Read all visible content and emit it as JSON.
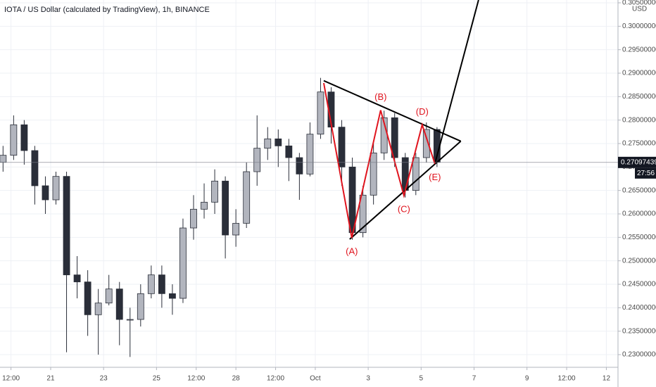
{
  "chart_data": {
    "type": "candlestick",
    "title": "IOTA / US Dollar (calculated by TradingView), 1h, BINANCE",
    "currency": "USD",
    "x": [
      19.2,
      19.6,
      20,
      20.4,
      20.8,
      21.2,
      21.6,
      22,
      22.4,
      22.8,
      23.2,
      23.6,
      24,
      24.4,
      24.8,
      25.2,
      25.6,
      26,
      26.4,
      26.8,
      27.2,
      27.6,
      28,
      28.4,
      28.8,
      29.2,
      29.6,
      30,
      30.4,
      30.8,
      31.2,
      31.6,
      32,
      32.4,
      32.8,
      33.2,
      33.6,
      34,
      34.4,
      34.8,
      35.2,
      35.6
    ],
    "open": [
      0.271,
      0.2725,
      0.279,
      0.2735,
      0.266,
      0.263,
      0.268,
      0.247,
      0.2455,
      0.2385,
      0.241,
      0.244,
      0.2375,
      0.2375,
      0.243,
      0.247,
      0.243,
      0.242,
      0.257,
      0.261,
      0.2625,
      0.267,
      0.2555,
      0.258,
      0.269,
      0.274,
      0.276,
      0.2745,
      0.272,
      0.2685,
      0.277,
      0.286,
      0.2785,
      0.27,
      0.256,
      0.264,
      0.273,
      0.2805,
      0.272,
      0.265,
      0.272,
      0.278
    ],
    "high": [
      0.2745,
      0.281,
      0.28,
      0.2745,
      0.268,
      0.269,
      0.269,
      0.251,
      0.248,
      0.244,
      0.247,
      0.2455,
      0.24,
      0.245,
      0.249,
      0.249,
      0.245,
      0.259,
      0.264,
      0.2665,
      0.2695,
      0.268,
      0.261,
      0.271,
      0.281,
      0.2785,
      0.278,
      0.276,
      0.273,
      0.2795,
      0.289,
      0.287,
      0.28,
      0.272,
      0.266,
      0.275,
      0.282,
      0.2815,
      0.273,
      0.273,
      0.2795,
      0.2785
    ],
    "low": [
      0.269,
      0.2715,
      0.2705,
      0.262,
      0.26,
      0.262,
      0.2305,
      0.242,
      0.234,
      0.23,
      0.2405,
      0.232,
      0.2295,
      0.236,
      0.242,
      0.24,
      0.2385,
      0.241,
      0.2545,
      0.259,
      0.26,
      0.2505,
      0.253,
      0.257,
      0.266,
      0.2715,
      0.27,
      0.267,
      0.263,
      0.268,
      0.276,
      0.275,
      0.266,
      0.2545,
      0.255,
      0.262,
      0.2715,
      0.27,
      0.2635,
      0.264,
      0.271,
      0.27
    ],
    "close": [
      0.2725,
      0.279,
      0.2735,
      0.266,
      0.263,
      0.268,
      0.247,
      0.2455,
      0.2385,
      0.241,
      0.244,
      0.2375,
      0.2375,
      0.243,
      0.247,
      0.243,
      0.242,
      0.257,
      0.261,
      0.2625,
      0.267,
      0.2555,
      0.258,
      0.269,
      0.274,
      0.276,
      0.2745,
      0.272,
      0.2685,
      0.277,
      0.286,
      0.2785,
      0.27,
      0.256,
      0.264,
      0.273,
      0.2805,
      0.272,
      0.265,
      0.272,
      0.278,
      0.271
    ],
    "up_color": "#b2b5be",
    "down_color": "#2a2e39",
    "xlim": [
      19.085,
      42.44
    ],
    "ylim": [
      0.2273,
      0.3056
    ],
    "xticks": [
      {
        "value": 19.5,
        "label": "12:00"
      },
      21,
      23,
      25,
      {
        "value": 26.5,
        "label": "12:00"
      },
      28,
      {
        "value": 29.5,
        "label": "12:00"
      },
      {
        "value": 31,
        "label": "Oct"
      },
      {
        "value": 33,
        "label": "3"
      },
      {
        "value": 35,
        "label": "5"
      },
      {
        "value": 37,
        "label": "7"
      },
      {
        "value": 39,
        "label": "9"
      },
      {
        "value": 40.5,
        "label": "12:00"
      },
      {
        "value": 42,
        "label": "12"
      }
    ],
    "yticks": [
      {
        "value": 0.23,
        "label": "0.23000000"
      },
      {
        "value": 0.235,
        "label": "0.23500000"
      },
      {
        "value": 0.24,
        "label": "0.24000000"
      },
      {
        "value": 0.245,
        "label": "0.24500000"
      },
      {
        "value": 0.25,
        "label": "0.25000000"
      },
      {
        "value": 0.255,
        "label": "0.25500000"
      },
      {
        "value": 0.26,
        "label": "0.26000000"
      },
      {
        "value": 0.265,
        "label": "0.26500000"
      },
      {
        "value": 0.27,
        "label": "0.27000000"
      },
      {
        "value": 0.275,
        "label": "0.27500000"
      },
      {
        "value": 0.28,
        "label": "0.28000000"
      },
      {
        "value": 0.285,
        "label": "0.28500000"
      },
      {
        "value": 0.29,
        "label": "0.29000000"
      },
      {
        "value": 0.295,
        "label": "0.29500000"
      },
      {
        "value": 0.3,
        "label": "0.30000000"
      },
      {
        "value": 0.305,
        "label": "0.30500000"
      }
    ],
    "grid": true,
    "last_price": 0.27097439,
    "countdown": "27:56",
    "wave": {
      "color": "#e0141e",
      "x": [
        31.32,
        32.38,
        33.47,
        34.35,
        35.04,
        35.52
      ],
      "y": [
        0.2879,
        0.2549,
        0.2821,
        0.2639,
        0.279,
        0.2707
      ],
      "labels": [
        null,
        "(A)",
        "(B)",
        "(C)",
        "(D)",
        "(E)"
      ],
      "placement": [
        null,
        "below",
        "above",
        "below",
        "above",
        "below"
      ]
    },
    "trendlines": [
      {
        "color": "#000000",
        "x": [
          31.32,
          36.5
        ],
        "y": [
          0.2884,
          0.2755
        ]
      },
      {
        "color": "#000000",
        "x": [
          32.3,
          36.5
        ],
        "y": [
          0.2546,
          0.2755
        ]
      },
      {
        "color": "#000000",
        "x": [
          35.52,
          37.17
        ],
        "y": [
          0.2707,
          0.3056
        ]
      }
    ]
  }
}
